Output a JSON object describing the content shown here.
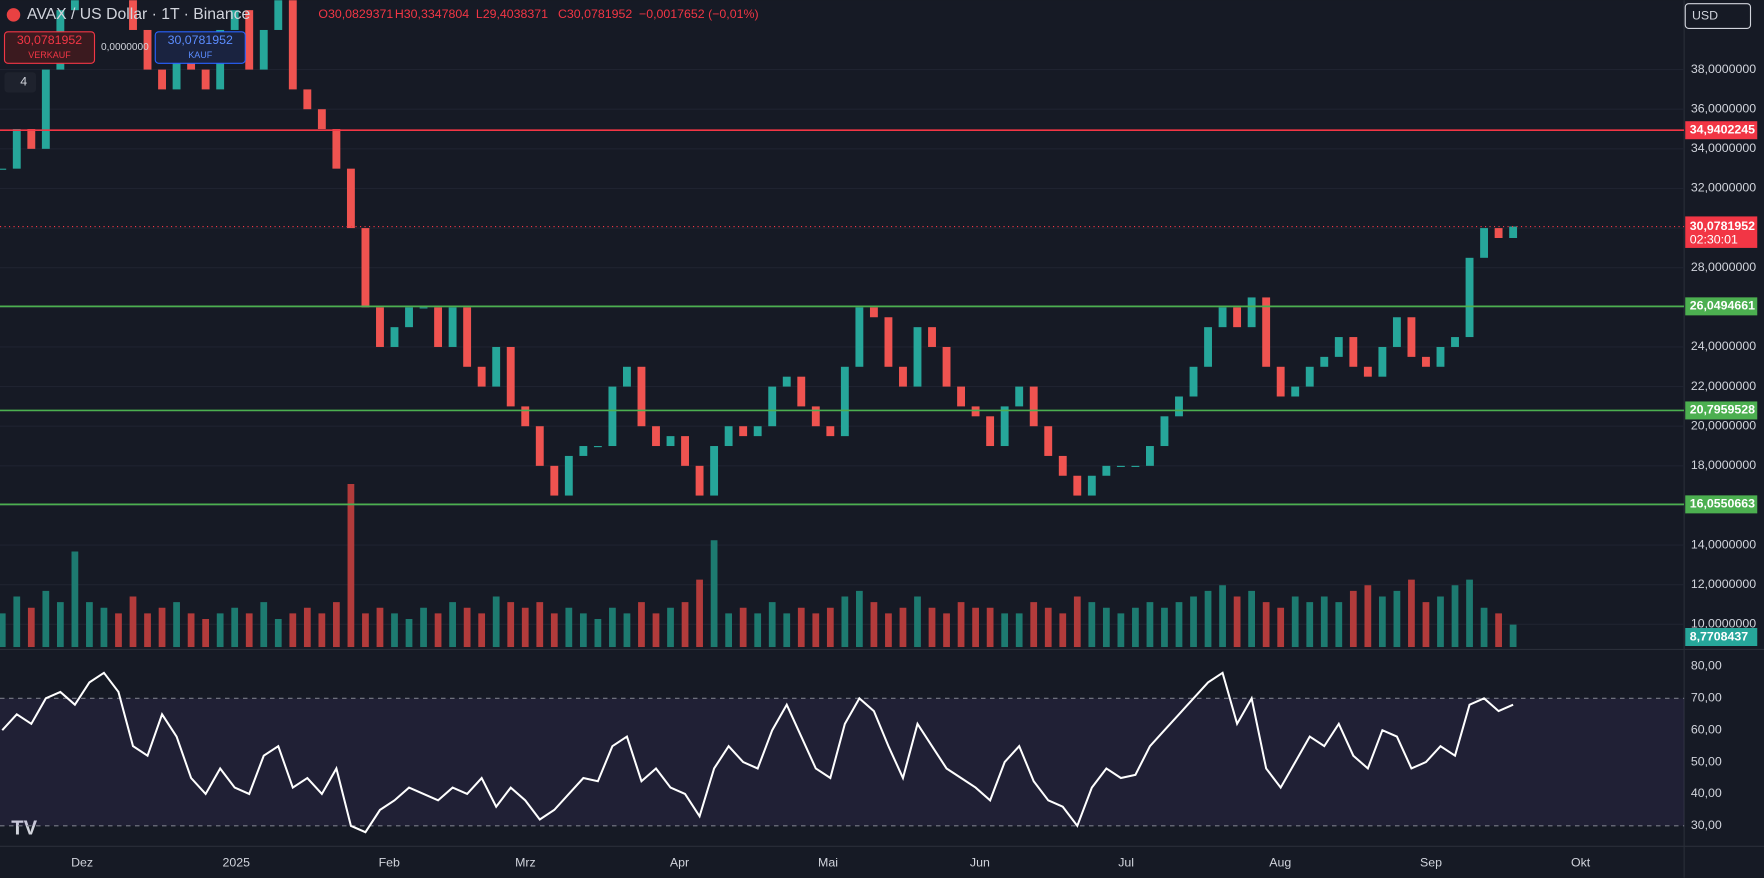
{
  "header": {
    "symbol": "AVAX / US Dollar · 1T · Binance",
    "open": "O30,0829371",
    "high": "H30,3347804",
    "low": "L29,4038371",
    "close": "C30,0781952",
    "change": "−0,0017652 (−0,01%)"
  },
  "trade": {
    "sell_price": "30,0781952",
    "sell_label": "VERKAUF",
    "spread": "0,0000000",
    "buy_price": "30,0781952",
    "buy_label": "KAUF"
  },
  "indicator_count": "4",
  "currency": "USD",
  "chart_data": {
    "type": "candlestick",
    "closes": [
      33,
      35,
      34,
      38,
      41,
      42,
      43,
      44,
      42,
      40,
      38,
      37,
      39,
      38,
      37,
      40,
      41,
      38,
      40,
      42,
      37,
      36,
      35,
      33,
      30,
      26,
      24,
      25,
      26,
      26,
      24,
      26,
      23,
      22,
      24,
      21,
      20,
      18,
      16.5,
      18.5,
      19,
      19,
      22,
      23,
      20,
      19,
      19.5,
      18,
      16.5,
      19,
      20,
      19.5,
      20,
      22,
      22.5,
      21,
      20,
      19.5,
      23,
      26,
      25.5,
      23,
      22,
      25,
      24,
      22,
      21,
      20.5,
      19,
      21,
      22,
      20,
      18.5,
      17.5,
      16.5,
      17.5,
      18,
      18,
      18,
      19,
      20.5,
      21.5,
      23,
      25,
      26,
      25,
      26.5,
      23,
      21.5,
      22,
      23,
      23.5,
      24.5,
      23,
      22.5,
      24,
      25.5,
      23.5,
      23,
      24,
      24.5,
      28.5,
      30,
      29.5,
      30.08
    ],
    "ylim": [
      8.85,
      41.5
    ],
    "yticks": [
      {
        "value": 10,
        "label": "10,0000000"
      },
      {
        "value": 12,
        "label": "12,0000000"
      },
      {
        "value": 14,
        "label": "14,0000000"
      },
      {
        "value": 16,
        "label": "16,0000000"
      },
      {
        "value": 18,
        "label": "18,0000000"
      },
      {
        "value": 20,
        "label": "20,0000000"
      },
      {
        "value": 22,
        "label": "22,0000000"
      },
      {
        "value": 24,
        "label": "24,0000000"
      },
      {
        "value": 26,
        "label": "26,0000000"
      },
      {
        "value": 28,
        "label": "28,0000000"
      },
      {
        "value": 30,
        "label": "30,0000000"
      },
      {
        "value": 32,
        "label": "32,0000000"
      },
      {
        "value": 34,
        "label": "34,0000000"
      },
      {
        "value": 36,
        "label": "36,0000000"
      },
      {
        "value": 38,
        "label": "38,0000000"
      }
    ],
    "levels": [
      {
        "value": 34.9402245,
        "label": "34,9402245",
        "color": "#f23645"
      },
      {
        "value": 26.0494661,
        "label": "26,0494661",
        "color": "#4caf50"
      },
      {
        "value": 20.7959528,
        "label": "20,7959528",
        "color": "#4caf50"
      },
      {
        "value": 16.0550663,
        "label": "16,0550663",
        "color": "#4caf50"
      }
    ],
    "last_price": {
      "value": 30.0781952,
      "label": "30,0781952",
      "countdown": "02:30:01"
    },
    "volume": {
      "values": [
        30,
        45,
        35,
        50,
        40,
        85,
        40,
        35,
        30,
        45,
        30,
        35,
        40,
        30,
        25,
        30,
        35,
        30,
        40,
        25,
        30,
        35,
        30,
        40,
        145,
        30,
        35,
        30,
        25,
        35,
        30,
        40,
        35,
        30,
        45,
        40,
        35,
        40,
        30,
        35,
        30,
        25,
        35,
        30,
        40,
        30,
        35,
        40,
        60,
        95,
        30,
        35,
        30,
        40,
        30,
        35,
        30,
        35,
        45,
        50,
        40,
        30,
        35,
        45,
        35,
        30,
        40,
        35,
        35,
        30,
        30,
        40,
        35,
        30,
        45,
        40,
        35,
        30,
        35,
        40,
        35,
        40,
        45,
        50,
        55,
        45,
        50,
        40,
        35,
        45,
        40,
        45,
        40,
        50,
        55,
        45,
        50,
        60,
        40,
        45,
        55,
        60,
        35,
        30,
        20
      ],
      "ylim": [
        0,
        150
      ],
      "last_label": "8,7708437"
    },
    "rsi": {
      "values": [
        60,
        65,
        62,
        70,
        72,
        68,
        75,
        78,
        72,
        55,
        52,
        65,
        58,
        45,
        40,
        48,
        42,
        40,
        52,
        55,
        42,
        45,
        40,
        48,
        30,
        28,
        35,
        38,
        42,
        40,
        38,
        42,
        40,
        45,
        36,
        42,
        38,
        32,
        35,
        40,
        45,
        44,
        55,
        58,
        44,
        48,
        42,
        40,
        33,
        48,
        55,
        50,
        48,
        60,
        68,
        58,
        48,
        45,
        62,
        70,
        66,
        55,
        45,
        62,
        55,
        48,
        45,
        42,
        38,
        50,
        55,
        44,
        38,
        36,
        30,
        42,
        48,
        45,
        46,
        55,
        60,
        65,
        70,
        75,
        78,
        62,
        70,
        48,
        42,
        50,
        58,
        55,
        62,
        52,
        48,
        60,
        58,
        48,
        50,
        55,
        52,
        68,
        70,
        66,
        68
      ],
      "ylim": [
        23.6,
        85
      ],
      "yticks": [
        {
          "value": 30,
          "label": "30,00"
        },
        {
          "value": 40,
          "label": "40,00"
        },
        {
          "value": 50,
          "label": "50,00"
        },
        {
          "value": 60,
          "label": "60,00"
        },
        {
          "value": 70,
          "label": "70,00"
        },
        {
          "value": 80,
          "label": "80,00"
        }
      ],
      "band": [
        30,
        70
      ]
    },
    "x_labels": [
      "Dez",
      "2025",
      "Feb",
      "Mrz",
      "Apr",
      "Mai",
      "Jun",
      "Jul",
      "Aug",
      "Sep",
      "Okt"
    ]
  }
}
